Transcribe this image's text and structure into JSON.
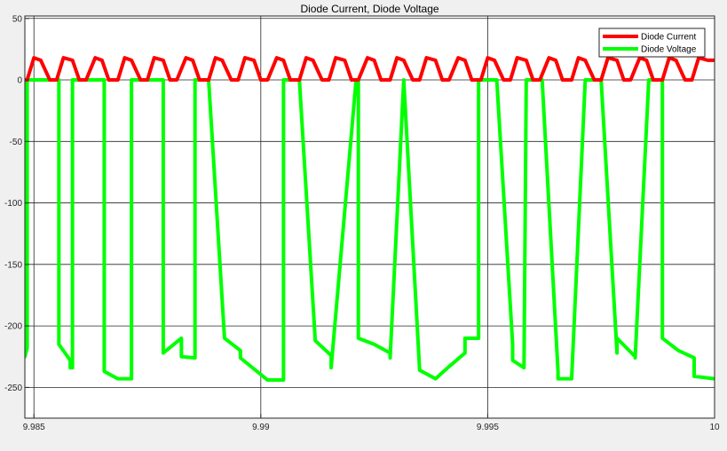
{
  "chart_data": {
    "type": "line",
    "title": "Diode Current, Diode Voltage",
    "xlabel": "",
    "ylabel": "",
    "xlim": [
      9.9848,
      10.0
    ],
    "ylim": [
      -275,
      52
    ],
    "xticks": [
      9.985,
      9.99,
      9.995,
      10
    ],
    "xtick_labels": [
      "9.985",
      "9.99",
      "9.995",
      "10"
    ],
    "yticks": [
      50,
      0,
      -50,
      -100,
      -150,
      -200,
      -250
    ],
    "ytick_labels": [
      "50",
      "0",
      "-50",
      "-100",
      "-150",
      "-200",
      "-250"
    ],
    "grid": true,
    "legend_position": "top-right",
    "background": "#ffffff",
    "series": [
      {
        "name": "Diode Current",
        "color": "#ff0000",
        "x": [
          9.9848,
          9.98485,
          9.985,
          9.98515,
          9.98535,
          9.9855,
          9.98565,
          9.98585,
          9.986,
          9.98615,
          9.98635,
          9.9865,
          9.98665,
          9.98685,
          9.987,
          9.98715,
          9.98735,
          9.9875,
          9.98765,
          9.98785,
          9.988,
          9.98815,
          9.98835,
          9.9885,
          9.98865,
          9.98885,
          9.989,
          9.98915,
          9.98935,
          9.9895,
          9.98965,
          9.98985,
          9.99,
          9.99015,
          9.99035,
          9.9905,
          9.99065,
          9.99085,
          9.991,
          9.99115,
          9.99135,
          9.9915,
          9.99165,
          9.99185,
          9.992,
          9.99215,
          9.99235,
          9.9925,
          9.99265,
          9.99285,
          9.993,
          9.99315,
          9.99335,
          9.9935,
          9.99365,
          9.99385,
          9.994,
          9.99415,
          9.99435,
          9.9945,
          9.99465,
          9.99485,
          9.995,
          9.99515,
          9.99535,
          9.9955,
          9.99565,
          9.99585,
          9.996,
          9.99615,
          9.99635,
          9.9965,
          9.99665,
          9.99685,
          9.997,
          9.99715,
          9.99735,
          9.9975,
          9.99765,
          9.99785,
          9.998,
          9.99815,
          9.99835,
          9.9985,
          9.99865,
          9.99885,
          9.999,
          9.99915,
          9.99935,
          9.9995,
          9.99965,
          9.99985,
          10.0
        ],
        "y": [
          0,
          0,
          18,
          16,
          0,
          0,
          18,
          16,
          0,
          0,
          18,
          16,
          0,
          0,
          18,
          16,
          0,
          0,
          18,
          16,
          0,
          0,
          18,
          16,
          0,
          0,
          18,
          16,
          0,
          0,
          18,
          16,
          0,
          0,
          18,
          16,
          0,
          0,
          18,
          16,
          0,
          0,
          18,
          16,
          0,
          0,
          18,
          16,
          0,
          0,
          18,
          16,
          0,
          0,
          18,
          16,
          0,
          0,
          18,
          16,
          0,
          0,
          18,
          16,
          0,
          0,
          18,
          16,
          0,
          0,
          18,
          16,
          0,
          0,
          18,
          16,
          0,
          0,
          18,
          16,
          0,
          0,
          18,
          16,
          0,
          0,
          18,
          16,
          0,
          0,
          18,
          16,
          16
        ]
      },
      {
        "name": "Diode Voltage",
        "color": "#00ff00",
        "x": [
          9.9848,
          9.98485,
          9.98485,
          9.9852,
          9.98555,
          9.98555,
          9.9858,
          9.9858,
          9.98585,
          9.98585,
          9.9862,
          9.98655,
          9.98655,
          9.98685,
          9.98685,
          9.98715,
          9.98715,
          9.9875,
          9.98785,
          9.98785,
          9.98825,
          9.98825,
          9.98855,
          9.98855,
          9.98885,
          9.98885,
          9.9892,
          9.98955,
          9.98955,
          9.99015,
          9.9905,
          9.9905,
          9.99085,
          9.99085,
          9.9912,
          9.99155,
          9.99155,
          9.9921,
          9.99215,
          9.99215,
          9.9925,
          9.99285,
          9.99285,
          9.99315,
          9.99315,
          9.9935,
          9.99385,
          9.99385,
          9.99415,
          9.9945,
          9.9945,
          9.9948,
          9.9948,
          9.9952,
          9.99555,
          9.99555,
          9.9958,
          9.9958,
          9.99585,
          9.99585,
          9.9962,
          9.99655,
          9.99655,
          9.99685,
          9.99685,
          9.99715,
          9.99715,
          9.9975,
          9.99785,
          9.99785,
          9.99825,
          9.99825,
          9.99855,
          9.99855,
          9.99885,
          9.99885,
          9.9992,
          9.99955,
          9.99955,
          10.0
        ],
        "y": [
          -225,
          -218,
          0,
          0,
          0,
          -215,
          -228,
          -234,
          -234,
          0,
          0,
          0,
          -237,
          -243,
          -243,
          -243,
          0,
          0,
          0,
          -222,
          -210,
          -225,
          -226,
          0,
          0,
          0,
          -210,
          -220,
          -226,
          -244,
          -244,
          0,
          0,
          0,
          -212,
          -224,
          -234,
          0,
          0,
          -210,
          -215,
          -222,
          -226,
          0,
          0,
          -236,
          -243,
          -243,
          -233,
          -222,
          -210,
          -210,
          0,
          0,
          -215,
          -228,
          -234,
          -234,
          0,
          0,
          0,
          -237,
          -243,
          -243,
          -243,
          0,
          0,
          0,
          -222,
          -210,
          -225,
          -226,
          0,
          0,
          0,
          -210,
          -220,
          -226,
          -241,
          -243
        ]
      }
    ]
  }
}
